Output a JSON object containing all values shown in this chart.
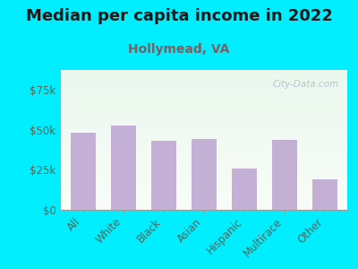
{
  "title": "Median per capita income in 2022",
  "subtitle": "Hollymead, VA",
  "categories": [
    "All",
    "White",
    "Black",
    "Asian",
    "Hispanic",
    "Multirace",
    "Other"
  ],
  "values": [
    48500,
    53000,
    43000,
    44500,
    26000,
    43500,
    19000
  ],
  "bar_color": "#c4b0d4",
  "background_outer": "#00eeff",
  "ylim": [
    0,
    87500
  ],
  "yticks": [
    0,
    25000,
    50000,
    75000
  ],
  "ytick_labels": [
    "$0",
    "$25k",
    "$50k",
    "$75k"
  ],
  "title_fontsize": 13,
  "subtitle_fontsize": 10,
  "tick_fontsize": 8.5,
  "title_color": "#1a1a1a",
  "subtitle_color": "#7a6060",
  "tick_color": "#556655",
  "watermark_text": "City-Data.com"
}
